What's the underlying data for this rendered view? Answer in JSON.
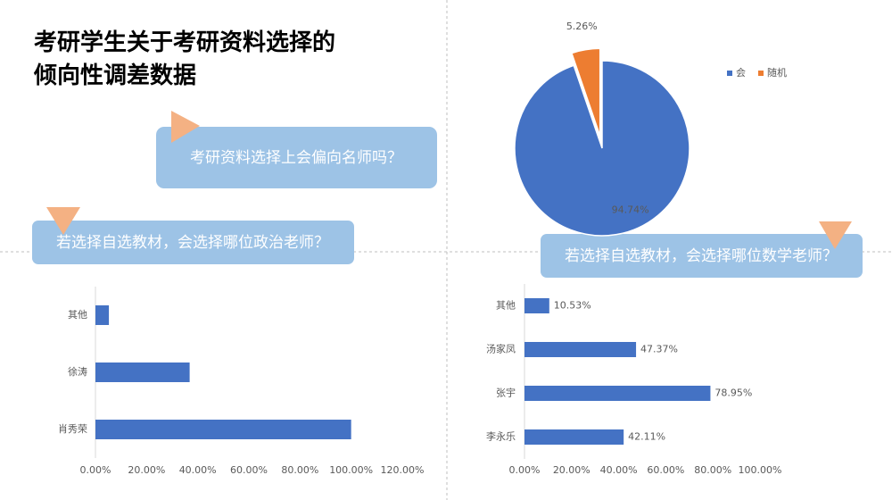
{
  "title_lines": [
    "考研学生关于考研资料选择的",
    "倾向性调差数据"
  ],
  "callouts": [
    "考研资料选择上会偏向名师吗？",
    "若选择自选教材，会选择哪位政治老师？",
    "若选择自选教材，会选择哪位数学老师？"
  ],
  "chart_data": [
    {
      "type": "pie",
      "categories": [
        "会",
        "随机"
      ],
      "values": [
        94.74,
        5.26
      ],
      "value_labels": [
        "94.74%",
        "5.26%"
      ],
      "colors": [
        "#4472c4",
        "#ed7d31"
      ],
      "legend": "right"
    },
    {
      "type": "bar",
      "orientation": "horizontal",
      "categories": [
        "其他",
        "徐涛",
        "肖秀荣"
      ],
      "values": [
        5.26,
        36.84,
        100
      ],
      "color": "#4472c4",
      "xlim": [
        0,
        120
      ],
      "xticks": [
        {
          "value": 0,
          "label": "0.00%"
        },
        {
          "value": 20,
          "label": "20.00%"
        },
        {
          "value": 40,
          "label": "40.00%"
        },
        {
          "value": 60,
          "label": "60.00%"
        },
        {
          "value": 80,
          "label": "80.00%"
        },
        {
          "value": 100,
          "label": "100.00%"
        },
        {
          "value": 120,
          "label": "120.00%"
        }
      ]
    },
    {
      "type": "bar",
      "orientation": "horizontal",
      "categories": [
        "其他",
        "汤家凤",
        "张宇",
        "李永乐"
      ],
      "values": [
        10.53,
        47.37,
        78.95,
        42.11
      ],
      "value_labels": [
        "10.53%",
        "47.37%",
        "78.95%",
        "42.11%"
      ],
      "color": "#4472c4",
      "xlim": [
        0,
        100
      ],
      "xticks": [
        {
          "value": 0,
          "label": "0.00%"
        },
        {
          "value": 20,
          "label": "20.00%"
        },
        {
          "value": 40,
          "label": "40.00%"
        },
        {
          "value": 60,
          "label": "60.00%"
        },
        {
          "value": 80,
          "label": "80.00%"
        },
        {
          "value": 100,
          "label": "100.00%"
        }
      ]
    }
  ]
}
